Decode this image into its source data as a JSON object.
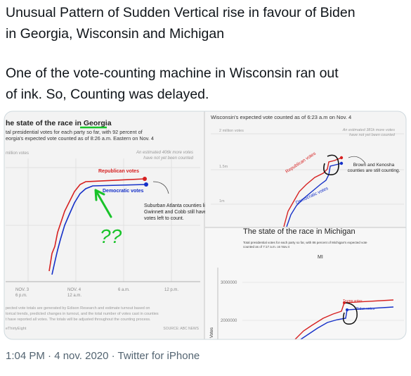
{
  "tweet": {
    "lines": [
      "Unusual Pattern of Sudden Vertical rise in favour of Biden",
      "in Georgia, Wisconsin and Michigan",
      "One of the vote-counting machine in Wisconsin ran out",
      "of ink. So, Counting was delayed."
    ],
    "footer": "1:04 PM · 4 nov. 2020 · Twitter for iPhone"
  },
  "image": {
    "georgia": {
      "title": "he state of the race in Georgia",
      "subtitle": [
        "tal presidential votes for each party so far, with 92 percent of",
        "eorgia's expected vote counted as of 8:26 a.m. Eastern on Nov. 4"
      ],
      "axis_label": "million votes",
      "note": [
        "An estimated 406k more votes",
        "have not yet been counted"
      ],
      "republican": "Republican votes",
      "democratic": "Democratic votes",
      "annotation": [
        "Suburban Atlanta counties like",
        "Gwinnett and Cobb still have",
        "votes left to count."
      ],
      "question": "??",
      "x_labels": [
        [
          "NOV. 3",
          "6 p.m."
        ],
        [
          "NOV. 4",
          "12 a.m."
        ],
        [
          "6 a.m."
        ],
        [
          "12 p.m."
        ]
      ],
      "footnote": [
        "pected vote totals are generated by Edison Research and estimate turnout based on",
        "torical trends, predicted changes in turnout, and the total number of votes cast in counties",
        "t have reported all votes. The totals will be adjusted throughout the counting process."
      ],
      "credit": "eThirtyEight",
      "source": "SOURCE: ABC NEWS"
    },
    "wisconsin": {
      "title": "Wisconsin's expected vote counted as of 6:23 a.m on Nov. 4",
      "y_labels": [
        "2 million votes",
        "1.5m",
        "1m"
      ],
      "note": [
        "An estimated 381k more votes",
        "have not yet been counted"
      ],
      "republican": "Republican votes",
      "democratic": "Democratic votes",
      "annotation": [
        "Brown and Kenosha",
        "counties are still counting."
      ]
    },
    "michigan": {
      "title": "The state of the race in Michigan",
      "subtitle": [
        "Total presidential votes for each party so far, with 86 percent of Michigan's expected vote",
        "counted as of 7:17 a.m. on Nov.4"
      ],
      "state": "MI",
      "y_labels": [
        "3000000",
        "2000000"
      ],
      "trump": "Trump votes",
      "biden": "Biden votes",
      "axis_label": "Votes"
    }
  }
}
